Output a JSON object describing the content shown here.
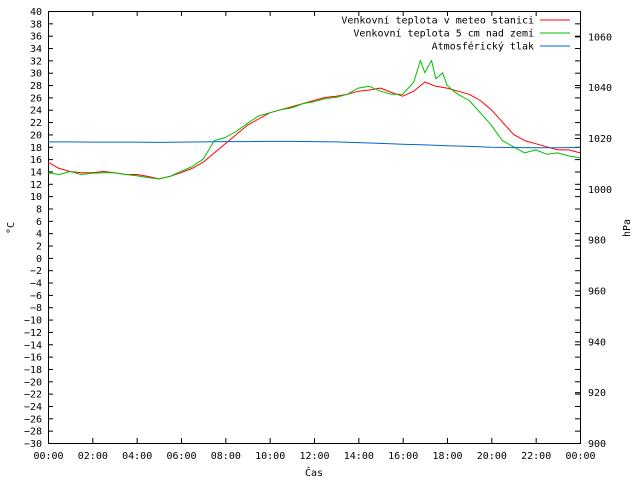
{
  "chart_data": {
    "type": "line",
    "xlabel": "Čas",
    "ylabel": "°C",
    "y2label": "hPa",
    "x_ticks": [
      "00:00",
      "02:00",
      "04:00",
      "06:00",
      "08:00",
      "10:00",
      "12:00",
      "14:00",
      "16:00",
      "18:00",
      "20:00",
      "22:00",
      "00:00"
    ],
    "x_range_hours": [
      0,
      24
    ],
    "ylim": [
      -30,
      40
    ],
    "y_step": 2,
    "y2lim": [
      900,
      1070
    ],
    "y2_step": 20,
    "grid": false,
    "legend_position": "top-right",
    "series": [
      {
        "name": "Venkovní teplota v meteo stanici",
        "axis": "y",
        "color": "#ff0000",
        "x": [
          0,
          0.5,
          1,
          1.5,
          2,
          2.5,
          3,
          3.5,
          4,
          4.5,
          5,
          5.5,
          6,
          6.5,
          7,
          7.5,
          8,
          8.5,
          9,
          9.5,
          10,
          10.5,
          11,
          11.5,
          12,
          12.5,
          13,
          13.5,
          14,
          14.5,
          15,
          15.5,
          16,
          16.5,
          17,
          17.5,
          18,
          18.5,
          19,
          19.5,
          20,
          20.5,
          21,
          21.5,
          22,
          22.5,
          23,
          23.5,
          24
        ],
        "y": [
          15.5,
          14.5,
          14.0,
          13.8,
          13.8,
          14.0,
          13.8,
          13.5,
          13.5,
          13.2,
          12.8,
          13.2,
          13.8,
          14.5,
          15.5,
          17.0,
          18.5,
          20.0,
          21.5,
          22.5,
          23.5,
          24.0,
          24.5,
          25.0,
          25.5,
          26.0,
          26.2,
          26.5,
          27.0,
          27.2,
          27.5,
          26.8,
          26.2,
          27.0,
          28.5,
          27.8,
          27.5,
          27.0,
          26.5,
          25.5,
          24.0,
          22.0,
          20.0,
          19.0,
          18.5,
          18.0,
          17.5,
          17.5,
          17.0
        ]
      },
      {
        "name": "Venkovní teplota 5 cm nad zemí",
        "axis": "y",
        "color": "#00c000",
        "x": [
          0,
          0.5,
          1,
          1.5,
          2,
          2.5,
          3,
          3.5,
          4,
          4.5,
          5,
          5.5,
          6,
          6.5,
          7,
          7.5,
          8,
          8.5,
          9,
          9.5,
          10,
          10.5,
          11,
          11.5,
          12,
          12.5,
          13,
          13.5,
          14,
          14.5,
          15,
          15.5,
          16,
          16.5,
          16.8,
          17,
          17.3,
          17.5,
          17.8,
          18,
          18.3,
          18.5,
          19,
          19.5,
          20,
          20.5,
          21,
          21.5,
          22,
          22.5,
          23,
          23.5,
          24
        ],
        "y": [
          13.8,
          13.5,
          14.0,
          13.5,
          13.7,
          13.8,
          13.8,
          13.5,
          13.3,
          13.0,
          12.8,
          13.2,
          14.0,
          14.8,
          16.0,
          19.0,
          19.5,
          20.5,
          21.8,
          23.0,
          23.5,
          24.0,
          24.3,
          25.0,
          25.3,
          25.8,
          26.0,
          26.5,
          27.5,
          27.8,
          27.0,
          26.5,
          26.5,
          28.5,
          32.0,
          30.0,
          32.0,
          29.0,
          30.0,
          28.0,
          27.0,
          26.5,
          25.5,
          23.5,
          21.5,
          19.0,
          18.0,
          17.0,
          17.5,
          16.8,
          17.0,
          16.5,
          16.2
        ]
      },
      {
        "name": "Atmosférický tlak",
        "axis": "y2",
        "color": "#0066cc",
        "x": [
          0,
          1,
          2,
          3,
          4,
          5,
          6,
          7,
          8,
          9,
          10,
          11,
          12,
          13,
          14,
          15,
          16,
          17,
          18,
          19,
          20,
          21,
          22,
          23,
          24
        ],
        "y": [
          1018.5,
          1018.5,
          1018.4,
          1018.4,
          1018.4,
          1018.3,
          1018.4,
          1018.5,
          1018.6,
          1018.6,
          1018.7,
          1018.7,
          1018.6,
          1018.5,
          1018.2,
          1017.9,
          1017.6,
          1017.3,
          1017.0,
          1016.7,
          1016.4,
          1016.3,
          1016.2,
          1016.2,
          1016.3
        ]
      }
    ]
  }
}
